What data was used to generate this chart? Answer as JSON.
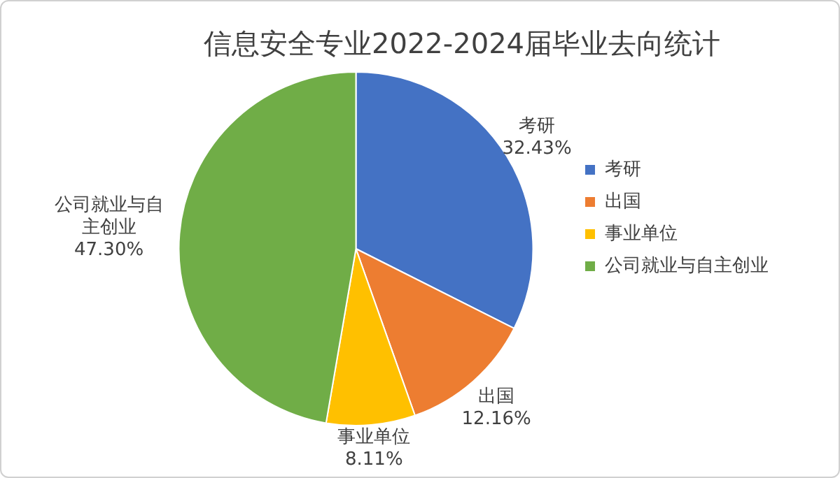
{
  "chart_data": {
    "type": "pie",
    "title": "信息安全专业2022-2024届毕业去向统计",
    "categories": [
      "考研",
      "出国",
      "事业单位",
      "公司就业与自主创业"
    ],
    "values": [
      32.43,
      12.16,
      8.11,
      47.3
    ],
    "colors": [
      "#4472c4",
      "#ed7d31",
      "#ffc000",
      "#70ad47"
    ],
    "value_labels": [
      "32.43%",
      "12.16%",
      "8.11%",
      "47.30%"
    ],
    "legend": "right"
  }
}
